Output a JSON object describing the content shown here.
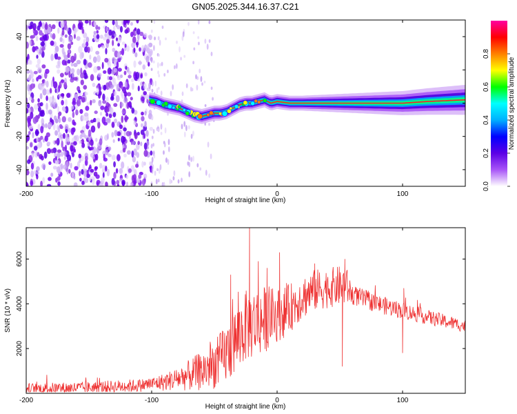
{
  "title": "GN05.2025.344.16.37.C21",
  "chart_data": [
    {
      "type": "heatmap",
      "xlabel": "Height of straight line (km)",
      "ylabel": "Frequency (Hz)",
      "xlim": [
        -200,
        150
      ],
      "ylim": [
        -50,
        50
      ],
      "xticks": [
        -200,
        -100,
        0,
        100
      ],
      "yticks": [
        -40,
        -20,
        0,
        20,
        40
      ],
      "noise_region_x": [
        -200,
        -100
      ],
      "sparse_noise_x": [
        -100,
        -50
      ],
      "ridge": {
        "x": [
          -102,
          -96,
          -90,
          -84,
          -78,
          -72,
          -66,
          -60,
          -55,
          -50,
          -45,
          -40,
          -35,
          -30,
          -25,
          -20,
          -15,
          -10,
          -5,
          0,
          10,
          30,
          50,
          80,
          100,
          120,
          150
        ],
        "y": [
          2,
          1,
          -1,
          -2,
          -3,
          -5,
          -7,
          -8,
          -7,
          -6,
          -6,
          -5,
          -3,
          -1,
          0,
          0,
          1,
          2,
          0,
          1,
          0,
          0,
          0,
          0,
          0,
          1,
          2
        ]
      },
      "colorbar": {
        "label": "Normalized spectral amplitude",
        "range": [
          0.0,
          1.0
        ],
        "ticks": [
          "0.0",
          "0.2",
          "0.4",
          "0.6",
          "0.8"
        ],
        "colors": [
          "#ffffff",
          "#a855f7",
          "#5b00e6",
          "#0000ff",
          "#00b0ff",
          "#00ffff",
          "#00ff00",
          "#ffff00",
          "#ff8000",
          "#ff0000",
          "#ff00a0"
        ]
      }
    },
    {
      "type": "line",
      "xlabel": "Height of straight line (km)",
      "ylabel": "SNR (10 * v/v)",
      "xlim": [
        -200,
        150
      ],
      "ylim": [
        0,
        7400
      ],
      "xticks": [
        -200,
        -100,
        0,
        100
      ],
      "yticks": [
        2000,
        4000,
        6000
      ],
      "line_color": "#ee3030",
      "trend": {
        "x": [
          -200,
          -150,
          -110,
          -90,
          -80,
          -70,
          -60,
          -50,
          -45,
          -40,
          -35,
          -30,
          -25,
          -20,
          -15,
          -10,
          -5,
          0,
          5,
          10,
          20,
          30,
          40,
          50,
          55,
          60,
          80,
          100,
          120,
          150
        ],
        "y": [
          200,
          250,
          350,
          500,
          650,
          800,
          1000,
          1300,
          1500,
          1800,
          2200,
          2600,
          3000,
          3100,
          3200,
          3300,
          3400,
          3500,
          3600,
          3800,
          4300,
          4600,
          4700,
          4800,
          4800,
          4400,
          4000,
          3700,
          3400,
          3000
        ]
      },
      "noise_amp": {
        "x": [
          -200,
          -100,
          -80,
          -60,
          -50,
          -40,
          -30,
          -20,
          -10,
          0,
          20,
          40,
          55,
          60,
          150
        ],
        "y": [
          250,
          300,
          500,
          900,
          1100,
          1400,
          1600,
          1600,
          1500,
          1200,
          1000,
          900,
          900,
          450,
          280
        ]
      },
      "spikes": [
        {
          "x": -37,
          "y": 5300
        },
        {
          "x": -22,
          "y": 7400
        },
        {
          "x": -15,
          "y": 5900
        },
        {
          "x": -8,
          "y": 5600
        },
        {
          "x": 2,
          "y": 6300
        },
        {
          "x": 30,
          "y": 5800
        },
        {
          "x": 54,
          "y": 6000
        },
        {
          "x": 52,
          "y": 1200
        },
        {
          "x": 100,
          "y": 1800
        },
        {
          "x": 101,
          "y": 4700
        }
      ]
    }
  ]
}
